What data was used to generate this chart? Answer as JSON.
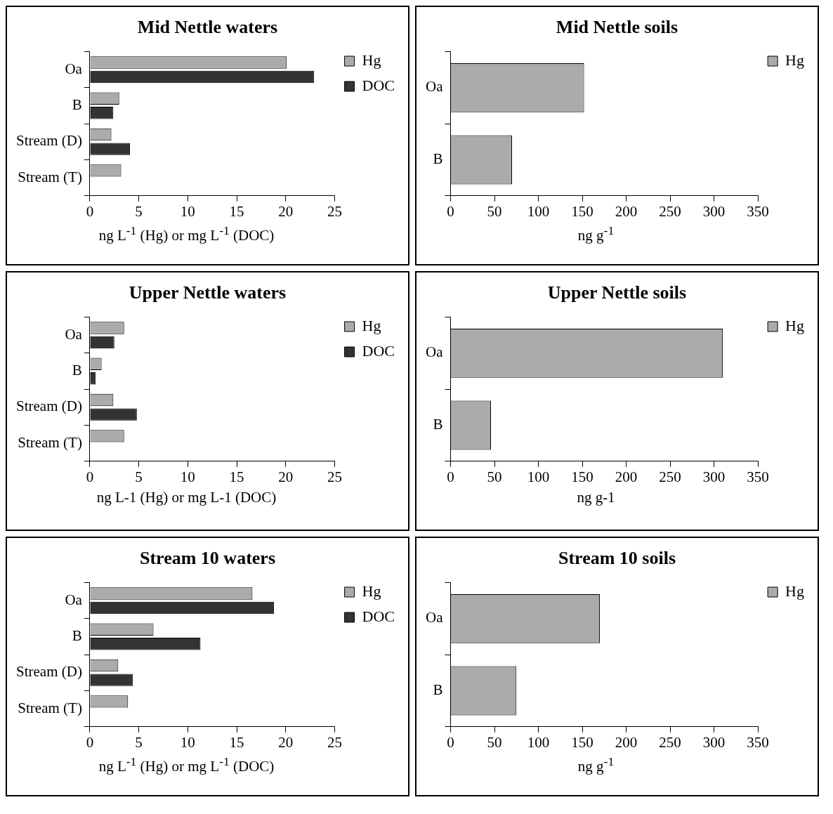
{
  "chart_data": [
    {
      "type": "bar",
      "orientation": "horizontal",
      "title": "Mid Nettle waters",
      "xlabel": "ng L$^{-1}$ (Hg) or mg L$^{-1}$ (DOC)",
      "categories": [
        "Oa",
        "B",
        "Stream (D)",
        "Stream (T)"
      ],
      "series": [
        {
          "name": "Hg",
          "color": "#ababab",
          "values": [
            20.1,
            3.0,
            2.2,
            3.2
          ]
        },
        {
          "name": "DOC",
          "color": "#333333",
          "values": [
            22.9,
            2.4,
            4.1,
            null
          ]
        }
      ],
      "xlim": [
        0,
        25
      ],
      "xticks": [
        0,
        5,
        10,
        15,
        20,
        25
      ],
      "legend": "top right",
      "grid": false
    },
    {
      "type": "bar",
      "orientation": "horizontal",
      "title": "Mid Nettle soils",
      "xlabel": "ng g$^{-1}$",
      "categories": [
        "Oa",
        "B"
      ],
      "series": [
        {
          "name": "Hg",
          "color": "#ababab",
          "values": [
            152,
            70
          ]
        }
      ],
      "xlim": [
        0,
        350
      ],
      "xticks": [
        0,
        50,
        100,
        150,
        200,
        250,
        300,
        350
      ],
      "legend": "top right",
      "grid": false
    },
    {
      "type": "bar",
      "orientation": "horizontal",
      "title": "Upper Nettle waters",
      "xlabel": "ng L-1 (Hg) or mg L-1 (DOC)",
      "categories": [
        "Oa",
        "B",
        "Stream (D)",
        "Stream (T)"
      ],
      "series": [
        {
          "name": "Hg",
          "color": "#ababab",
          "values": [
            3.5,
            1.2,
            2.4,
            3.5
          ]
        },
        {
          "name": "DOC",
          "color": "#333333",
          "values": [
            2.5,
            0.6,
            4.8,
            null
          ]
        }
      ],
      "xlim": [
        0,
        25
      ],
      "xticks": [
        0,
        5,
        10,
        15,
        20,
        25
      ],
      "legend": "top right",
      "grid": false
    },
    {
      "type": "bar",
      "orientation": "horizontal",
      "title": "Upper Nettle soils",
      "xlabel": "ng g-1",
      "categories": [
        "Oa",
        "B"
      ],
      "series": [
        {
          "name": "Hg",
          "color": "#ababab",
          "values": [
            310,
            46
          ]
        }
      ],
      "xlim": [
        0,
        350
      ],
      "xticks": [
        0,
        50,
        100,
        150,
        200,
        250,
        300,
        350
      ],
      "legend": "top right",
      "grid": false
    },
    {
      "type": "bar",
      "orientation": "horizontal",
      "title": "Stream 10 waters",
      "xlabel": "ng L$^{-1}$ (Hg) or mg L$^{-1}$ (DOC)",
      "categories": [
        "Oa",
        "B",
        "Stream (D)",
        "Stream (T)"
      ],
      "series": [
        {
          "name": "Hg",
          "color": "#ababab",
          "values": [
            16.6,
            6.5,
            2.9,
            3.9
          ]
        },
        {
          "name": "DOC",
          "color": "#333333",
          "values": [
            18.8,
            11.3,
            4.4,
            null
          ]
        }
      ],
      "xlim": [
        0,
        25
      ],
      "xticks": [
        0,
        5,
        10,
        15,
        20,
        25
      ],
      "legend": "top right",
      "grid": false
    },
    {
      "type": "bar",
      "orientation": "horizontal",
      "title": "Stream 10 soils",
      "xlabel": "ng g$^{-1}$",
      "categories": [
        "Oa",
        "B"
      ],
      "series": [
        {
          "name": "Hg",
          "color": "#ababab",
          "values": [
            170,
            75
          ]
        }
      ],
      "xlim": [
        0,
        350
      ],
      "xticks": [
        0,
        50,
        100,
        150,
        200,
        250,
        300,
        350
      ],
      "legend": "top right",
      "grid": false
    }
  ]
}
